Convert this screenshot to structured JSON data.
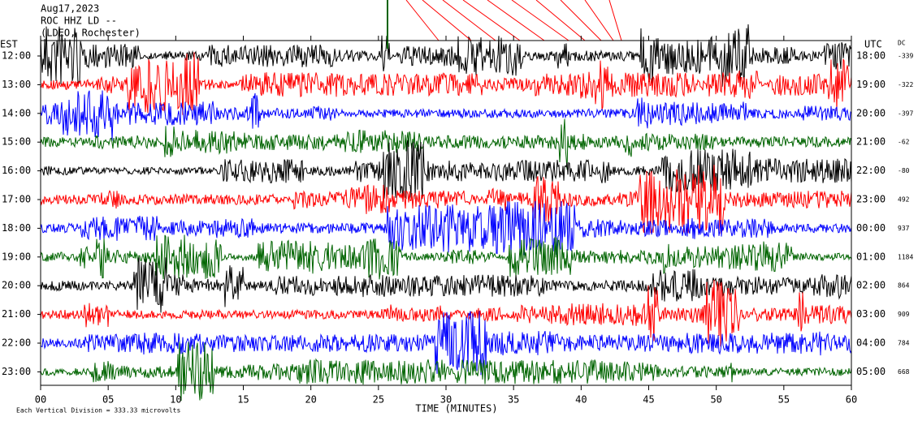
{
  "chart_data": {
    "type": "helicorder",
    "title_lines": [
      "Aug17,2023",
      "ROC HHZ LD --",
      "(LDEO, Rochester)"
    ],
    "left_axis_title": "EST",
    "right_axis_title": "UTC",
    "dc_title": "DC",
    "categories": [
      "12:00",
      "13:00",
      "14:00",
      "15:00",
      "16:00",
      "17:00",
      "18:00",
      "19:00",
      "20:00",
      "21:00",
      "22:00",
      "23:00"
    ],
    "right_labels": [
      "18:00",
      "19:00",
      "20:00",
      "21:00",
      "22:00",
      "23:00",
      "00:00",
      "01:00",
      "02:00",
      "03:00",
      "04:00",
      "05:00"
    ],
    "dc_values": [
      -339,
      -322,
      -397,
      -62,
      -80,
      492,
      937,
      1184,
      864,
      909,
      784,
      668
    ],
    "colors": [
      "#000000",
      "#ff0000",
      "#0000ff",
      "#006400"
    ],
    "xlim": [
      0,
      60
    ],
    "xticks": [
      {
        "value": 0,
        "label": "00"
      },
      {
        "value": 5,
        "label": "05"
      },
      10,
      15,
      20,
      25,
      30,
      35,
      40,
      45,
      50,
      55,
      60
    ],
    "xlabel": "TIME (MINUTES)",
    "footnote": "Each Vertical Division = 333.33 microvolts"
  }
}
